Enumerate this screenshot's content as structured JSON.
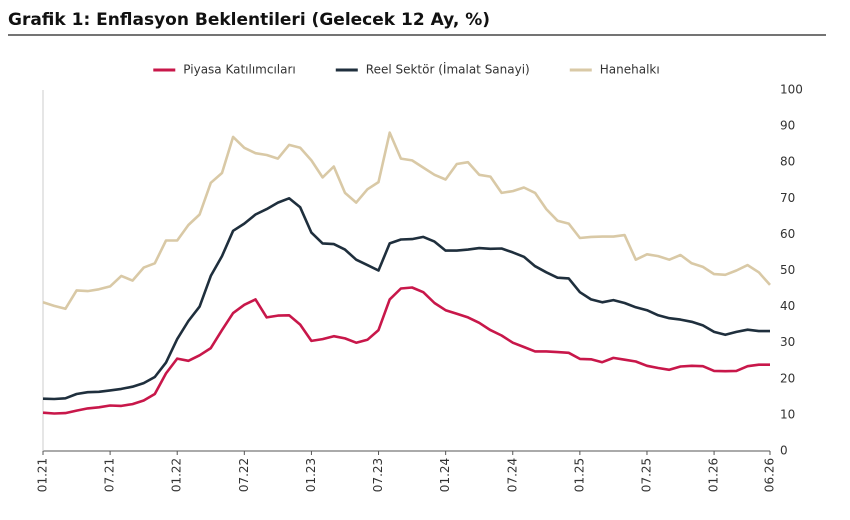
{
  "chart_data": {
    "type": "line",
    "title": "Grafik 1: Enflasyon Beklentileri (Gelecek 12 Ay, %)",
    "categories": [
      "01.21",
      null,
      null,
      null,
      null,
      null,
      "07.21",
      null,
      null,
      null,
      null,
      null,
      "01.22",
      null,
      null,
      null,
      null,
      null,
      "07.22",
      null,
      null,
      null,
      null,
      null,
      "01.23",
      null,
      null,
      null,
      null,
      null,
      "07.23",
      null,
      null,
      null,
      null,
      null,
      "01.24",
      null,
      null,
      null,
      null,
      null,
      "07.24",
      null,
      null,
      null,
      null,
      null,
      "01.25",
      null,
      null,
      null,
      null,
      null,
      "07.25",
      null,
      null,
      null,
      null,
      null,
      "01.26",
      null,
      null,
      null,
      null,
      "06.26"
    ],
    "series": [
      {
        "name": "Piyasa Katılımcıları",
        "color": "#c8174a",
        "values": [
          10.6,
          10.4,
          10.5,
          11.2,
          11.8,
          12.1,
          12.6,
          12.5,
          13.0,
          14.0,
          15.8,
          21.5,
          25.6,
          25.0,
          26.5,
          28.5,
          33.5,
          38.2,
          40.5,
          42.0,
          37.0,
          37.5,
          37.6,
          35.0,
          30.5,
          31.0,
          31.8,
          31.2,
          30.0,
          30.8,
          33.5,
          42.0,
          45.0,
          45.3,
          44.0,
          41.0,
          39.0,
          38.0,
          37.0,
          35.5,
          33.5,
          32.0,
          30.0,
          28.8,
          27.6,
          27.6,
          27.4,
          27.2,
          25.5,
          25.4,
          24.6,
          25.8,
          25.3,
          24.8,
          23.6,
          23.0,
          22.5,
          23.4,
          23.6,
          23.5,
          22.2,
          22.1,
          22.2,
          23.5,
          23.9,
          23.9
        ]
      },
      {
        "name": "Reel Sektör (İmalat Sanayi)",
        "color": "#1f2f3d",
        "values": [
          14.5,
          14.4,
          14.6,
          15.8,
          16.3,
          16.4,
          16.8,
          17.2,
          17.8,
          18.8,
          20.5,
          24.5,
          31.0,
          36.0,
          40.0,
          48.5,
          54.0,
          61.0,
          63.0,
          65.5,
          67.0,
          68.8,
          70.0,
          67.5,
          60.5,
          57.5,
          57.3,
          55.8,
          53.0,
          51.5,
          50.0,
          57.5,
          58.6,
          58.7,
          59.3,
          58.0,
          55.5,
          55.5,
          55.8,
          56.2,
          56.0,
          56.1,
          55.0,
          53.8,
          51.2,
          49.5,
          48.0,
          47.8,
          44.0,
          42.0,
          41.2,
          41.8,
          41.0,
          39.8,
          39.0,
          37.6,
          36.8,
          36.4,
          35.8,
          34.8,
          33.0,
          32.2,
          33.0,
          33.6,
          33.2,
          33.2
        ]
      },
      {
        "name": "Hanehalkı",
        "color": "#d9c9a6",
        "values": [
          41.2,
          40.2,
          39.4,
          44.5,
          44.3,
          44.8,
          45.6,
          48.5,
          47.2,
          50.8,
          52.0,
          58.3,
          58.3,
          62.6,
          65.5,
          74.3,
          77.0,
          87.0,
          84.0,
          82.5,
          82.0,
          81.0,
          84.8,
          84.0,
          80.5,
          75.8,
          78.8,
          71.5,
          68.8,
          72.5,
          74.5,
          88.2,
          81.0,
          80.5,
          78.5,
          76.5,
          75.2,
          79.5,
          80.0,
          76.5,
          76.0,
          71.5,
          72.0,
          73.0,
          71.5,
          67.0,
          63.8,
          63.0,
          59.0,
          59.3,
          59.4,
          59.4,
          59.8,
          53.0,
          54.5,
          54.0,
          53.0,
          54.3,
          52.0,
          51.0,
          49.0,
          48.8,
          50.0,
          51.5,
          49.5,
          46.0
        ]
      }
    ],
    "ylim": [
      0,
      100
    ],
    "yticks": [
      0,
      10,
      20,
      30,
      40,
      50,
      60,
      70,
      80,
      90,
      100
    ],
    "y_axis_position": "right",
    "legend_position": "top",
    "grid": false
  }
}
